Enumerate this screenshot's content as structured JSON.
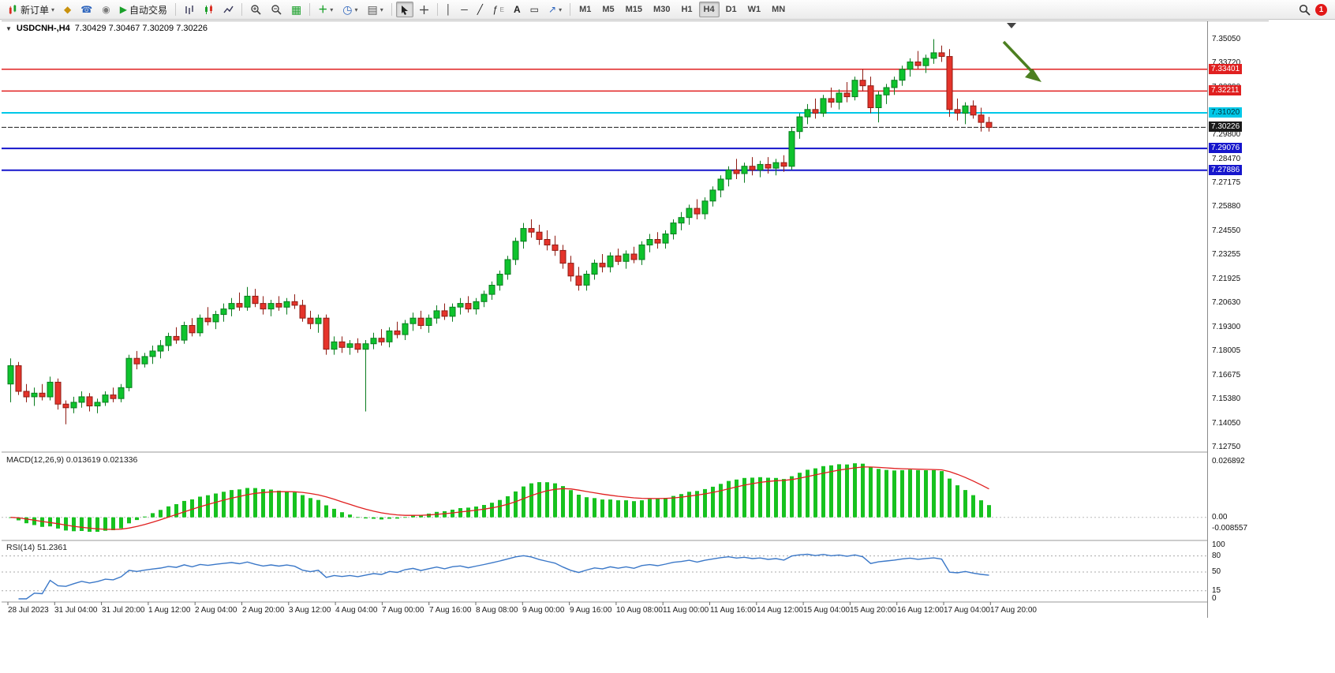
{
  "toolbar": {
    "new_order": "新订单",
    "auto_trading": "自动交易",
    "timeframes": [
      "M1",
      "M5",
      "M15",
      "M30",
      "H1",
      "H4",
      "D1",
      "W1",
      "MN"
    ],
    "active_timeframe": "H4",
    "notification_count": "1"
  },
  "icons": {
    "caret_down": "▾",
    "metaeditor": "◆",
    "support": "☎",
    "community": "◉",
    "autoplay": "▶",
    "tile_windows": "▦",
    "add_indicator": "＋",
    "clock": "◷",
    "template": "▤",
    "crosshair": "＋",
    "vertical_line": "│",
    "horizontal_line": "─",
    "trend_line": "╱",
    "fibonacci": "ƒ",
    "text": "A",
    "text_label": "▭",
    "arrow_tool": "↗",
    "collapse_triangle": "▼"
  },
  "chart": {
    "symbol_period": "USDCNH-,H4",
    "ohlc_text": "7.30429 7.30467 7.30209 7.30226",
    "price_axis_labels": [
      "7.35050",
      "7.33720",
      "7.32390",
      "7.29800",
      "7.28470",
      "7.27175",
      "7.25880",
      "7.24550",
      "7.23255",
      "7.21925",
      "7.20630",
      "7.19300",
      "7.18005",
      "7.16675",
      "7.15380",
      "7.14050",
      "7.12750"
    ],
    "hlines": [
      {
        "value": 7.33401,
        "label": "7.33401",
        "color": "#E02020",
        "text_color": "#FFFFFF",
        "stroke": 1.5
      },
      {
        "value": 7.32211,
        "label": "7.32211",
        "color": "#E02020",
        "text_color": "#FFFFFF",
        "stroke": 1.5
      },
      {
        "value": 7.3102,
        "label": "7.31020",
        "color": "#00C8E8",
        "text_color": "#00333C",
        "stroke": 2
      },
      {
        "value": 7.29076,
        "label": "7.29076",
        "color": "#1616CC",
        "text_color": "#FFFFFF",
        "stroke": 2
      },
      {
        "value": 7.27886,
        "label": "7.27886",
        "color": "#1616CC",
        "text_color": "#FFFFFF",
        "stroke": 2
      }
    ],
    "current_price": {
      "value": 7.30226,
      "label": "7.30226",
      "color": "#1A1A1A"
    },
    "annotation_arrow": {
      "color": "#4C7F20",
      "direction": "down-right"
    }
  },
  "indicators": {
    "macd_label": "MACD(12,26,9) 0.013619 0.021336",
    "macd_axis": [
      "0.026892",
      "0.00",
      "-0.008557"
    ],
    "rsi_label": "RSI(14) 51.2361",
    "rsi_axis": [
      {
        "label": "100",
        "value": 100
      },
      {
        "label": "80",
        "value": 80
      },
      {
        "label": "50",
        "value": 50
      },
      {
        "label": "15",
        "value": 15
      },
      {
        "label": "0",
        "value": 0
      }
    ],
    "rsi_levels": [
      80,
      50,
      15
    ]
  },
  "chart_data": {
    "type": "candlestick",
    "symbol": "USDCNH",
    "timeframe": "H4",
    "title": "USDCNH-,H4",
    "y_range": [
      7.1265,
      7.3585
    ],
    "x_labels": [
      "28 Jul 2023",
      "31 Jul 04:00",
      "31 Jul 20:00",
      "1 Aug 12:00",
      "2 Aug 04:00",
      "2 Aug 20:00",
      "3 Aug 12:00",
      "4 Aug 04:00",
      "7 Aug 00:00",
      "7 Aug 16:00",
      "8 Aug 08:00",
      "9 Aug 00:00",
      "9 Aug 16:00",
      "10 Aug 08:00",
      "11 Aug 00:00",
      "11 Aug 16:00",
      "14 Aug 12:00",
      "15 Aug 04:00",
      "15 Aug 20:00",
      "16 Aug 12:00",
      "17 Aug 04:00",
      "17 Aug 20:00"
    ],
    "ohlc": [
      [
        7.162,
        7.176,
        7.152,
        7.172
      ],
      [
        7.172,
        7.174,
        7.156,
        7.158
      ],
      [
        7.158,
        7.162,
        7.152,
        7.155
      ],
      [
        7.155,
        7.16,
        7.15,
        7.157
      ],
      [
        7.157,
        7.162,
        7.153,
        7.155
      ],
      [
        7.155,
        7.166,
        7.153,
        7.163
      ],
      [
        7.163,
        7.165,
        7.148,
        7.151
      ],
      [
        7.151,
        7.153,
        7.14,
        7.149
      ],
      [
        7.149,
        7.155,
        7.146,
        7.152
      ],
      [
        7.152,
        7.158,
        7.149,
        7.155
      ],
      [
        7.155,
        7.157,
        7.147,
        7.15
      ],
      [
        7.15,
        7.154,
        7.146,
        7.152
      ],
      [
        7.152,
        7.158,
        7.15,
        7.156
      ],
      [
        7.156,
        7.16,
        7.152,
        7.154
      ],
      [
        7.154,
        7.162,
        7.152,
        7.16
      ],
      [
        7.16,
        7.178,
        7.158,
        7.176
      ],
      [
        7.176,
        7.18,
        7.17,
        7.173
      ],
      [
        7.173,
        7.179,
        7.171,
        7.177
      ],
      [
        7.177,
        7.183,
        7.173,
        7.18
      ],
      [
        7.18,
        7.186,
        7.176,
        7.183
      ],
      [
        7.183,
        7.19,
        7.18,
        7.188
      ],
      [
        7.188,
        7.193,
        7.184,
        7.186
      ],
      [
        7.186,
        7.196,
        7.184,
        7.194
      ],
      [
        7.194,
        7.198,
        7.188,
        7.19
      ],
      [
        7.19,
        7.2,
        7.188,
        7.198
      ],
      [
        7.198,
        7.204,
        7.194,
        7.196
      ],
      [
        7.196,
        7.202,
        7.192,
        7.2
      ],
      [
        7.2,
        7.206,
        7.196,
        7.203
      ],
      [
        7.203,
        7.209,
        7.199,
        7.206
      ],
      [
        7.206,
        7.212,
        7.202,
        7.204
      ],
      [
        7.204,
        7.215,
        7.202,
        7.21
      ],
      [
        7.21,
        7.214,
        7.204,
        7.206
      ],
      [
        7.206,
        7.21,
        7.2,
        7.203
      ],
      [
        7.203,
        7.208,
        7.199,
        7.206
      ],
      [
        7.206,
        7.21,
        7.202,
        7.204
      ],
      [
        7.204,
        7.209,
        7.2,
        7.207
      ],
      [
        7.207,
        7.211,
        7.203,
        7.205
      ],
      [
        7.205,
        7.208,
        7.196,
        7.198
      ],
      [
        7.198,
        7.202,
        7.192,
        7.195
      ],
      [
        7.195,
        7.2,
        7.19,
        7.198
      ],
      [
        7.198,
        7.2,
        7.178,
        7.181
      ],
      [
        7.181,
        7.188,
        7.178,
        7.185
      ],
      [
        7.185,
        7.188,
        7.179,
        7.182
      ],
      [
        7.182,
        7.186,
        7.178,
        7.184
      ],
      [
        7.184,
        7.187,
        7.179,
        7.181
      ],
      [
        7.181,
        7.186,
        7.147,
        7.184
      ],
      [
        7.184,
        7.19,
        7.181,
        7.187
      ],
      [
        7.187,
        7.192,
        7.183,
        7.185
      ],
      [
        7.185,
        7.193,
        7.182,
        7.191
      ],
      [
        7.191,
        7.196,
        7.187,
        7.189
      ],
      [
        7.189,
        7.197,
        7.186,
        7.195
      ],
      [
        7.195,
        7.201,
        7.191,
        7.198
      ],
      [
        7.198,
        7.202,
        7.192,
        7.194
      ],
      [
        7.194,
        7.2,
        7.19,
        7.198
      ],
      [
        7.198,
        7.205,
        7.195,
        7.202
      ],
      [
        7.202,
        7.206,
        7.197,
        7.199
      ],
      [
        7.199,
        7.206,
        7.196,
        7.204
      ],
      [
        7.204,
        7.209,
        7.2,
        7.206
      ],
      [
        7.206,
        7.21,
        7.201,
        7.203
      ],
      [
        7.203,
        7.209,
        7.2,
        7.207
      ],
      [
        7.207,
        7.213,
        7.204,
        7.211
      ],
      [
        7.211,
        7.218,
        7.208,
        7.216
      ],
      [
        7.216,
        7.224,
        7.213,
        7.222
      ],
      [
        7.222,
        7.232,
        7.219,
        7.23
      ],
      [
        7.23,
        7.242,
        7.227,
        7.24
      ],
      [
        7.24,
        7.25,
        7.236,
        7.247
      ],
      [
        7.247,
        7.252,
        7.242,
        7.245
      ],
      [
        7.245,
        7.249,
        7.238,
        7.241
      ],
      [
        7.241,
        7.246,
        7.235,
        7.238
      ],
      [
        7.238,
        7.243,
        7.232,
        7.235
      ],
      [
        7.235,
        7.238,
        7.225,
        7.228
      ],
      [
        7.228,
        7.232,
        7.218,
        7.221
      ],
      [
        7.221,
        7.226,
        7.213,
        7.216
      ],
      [
        7.216,
        7.224,
        7.213,
        7.222
      ],
      [
        7.222,
        7.23,
        7.219,
        7.228
      ],
      [
        7.228,
        7.233,
        7.223,
        7.226
      ],
      [
        7.226,
        7.234,
        7.223,
        7.232
      ],
      [
        7.232,
        7.236,
        7.227,
        7.229
      ],
      [
        7.229,
        7.235,
        7.225,
        7.233
      ],
      [
        7.233,
        7.237,
        7.228,
        7.23
      ],
      [
        7.23,
        7.24,
        7.227,
        7.238
      ],
      [
        7.238,
        7.244,
        7.234,
        7.241
      ],
      [
        7.241,
        7.245,
        7.236,
        7.239
      ],
      [
        7.239,
        7.246,
        7.236,
        7.244
      ],
      [
        7.244,
        7.252,
        7.241,
        7.25
      ],
      [
        7.25,
        7.256,
        7.246,
        7.253
      ],
      [
        7.253,
        7.26,
        7.249,
        7.258
      ],
      [
        7.258,
        7.263,
        7.252,
        7.255
      ],
      [
        7.255,
        7.264,
        7.252,
        7.262
      ],
      [
        7.262,
        7.27,
        7.259,
        7.268
      ],
      [
        7.268,
        7.276,
        7.264,
        7.274
      ],
      [
        7.274,
        7.281,
        7.27,
        7.279
      ],
      [
        7.279,
        7.285,
        7.274,
        7.277
      ],
      [
        7.277,
        7.283,
        7.272,
        7.281
      ],
      [
        7.281,
        7.286,
        7.276,
        7.279
      ],
      [
        7.279,
        7.284,
        7.275,
        7.282
      ],
      [
        7.282,
        7.286,
        7.277,
        7.28
      ],
      [
        7.28,
        7.285,
        7.276,
        7.283
      ],
      [
        7.283,
        7.287,
        7.278,
        7.281
      ],
      [
        7.281,
        7.302,
        7.279,
        7.3
      ],
      [
        7.3,
        7.31,
        7.296,
        7.308
      ],
      [
        7.308,
        7.315,
        7.304,
        7.312
      ],
      [
        7.312,
        7.318,
        7.307,
        7.31
      ],
      [
        7.31,
        7.32,
        7.308,
        7.318
      ],
      [
        7.318,
        7.324,
        7.313,
        7.316
      ],
      [
        7.316,
        7.323,
        7.312,
        7.321
      ],
      [
        7.321,
        7.327,
        7.316,
        7.319
      ],
      [
        7.319,
        7.33,
        7.317,
        7.328
      ],
      [
        7.328,
        7.334,
        7.322,
        7.325
      ],
      [
        7.325,
        7.33,
        7.31,
        7.313
      ],
      [
        7.313,
        7.322,
        7.305,
        7.32
      ],
      [
        7.32,
        7.326,
        7.315,
        7.324
      ],
      [
        7.324,
        7.33,
        7.32,
        7.328
      ],
      [
        7.328,
        7.336,
        7.325,
        7.334
      ],
      [
        7.334,
        7.34,
        7.33,
        7.338
      ],
      [
        7.338,
        7.344,
        7.334,
        7.336
      ],
      [
        7.336,
        7.342,
        7.332,
        7.34
      ],
      [
        7.34,
        7.3505,
        7.337,
        7.343
      ],
      [
        7.343,
        7.347,
        7.338,
        7.341
      ],
      [
        7.341,
        7.345,
        7.308,
        7.312
      ],
      [
        7.312,
        7.318,
        7.306,
        7.31
      ],
      [
        7.31,
        7.316,
        7.304,
        7.314
      ],
      [
        7.314,
        7.317,
        7.307,
        7.309
      ],
      [
        7.309,
        7.313,
        7.3,
        7.305
      ],
      [
        7.305,
        7.308,
        7.3,
        7.30226
      ]
    ]
  }
}
